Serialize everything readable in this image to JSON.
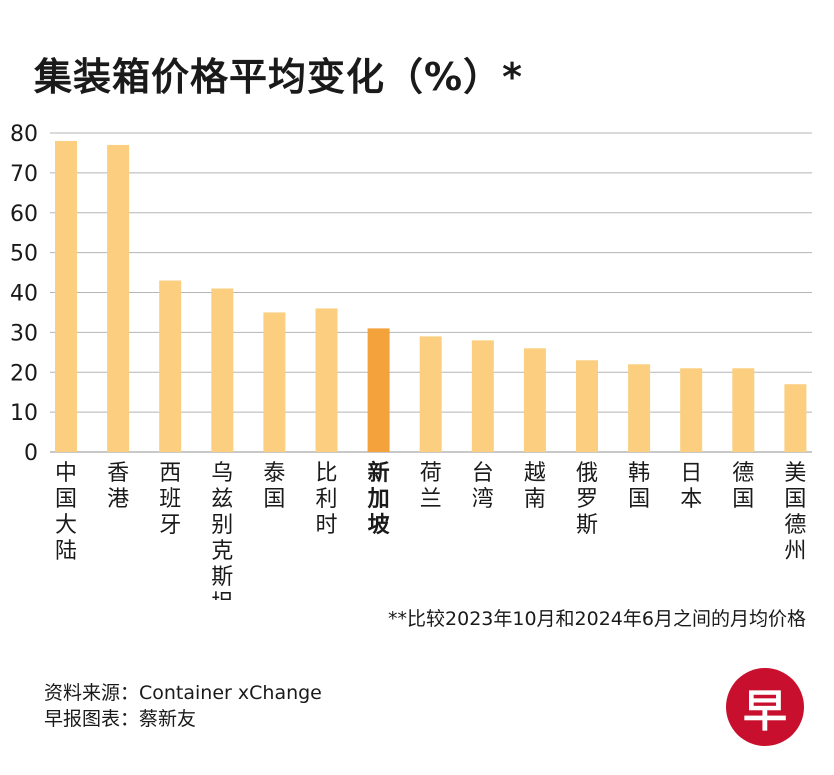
{
  "chart_data": {
    "type": "bar",
    "title": "集装箱价格平均变化（%）*",
    "categories": [
      "中国大陆",
      "香港",
      "西班牙",
      "乌兹别克斯坦",
      "泰国",
      "比利时",
      "新加坡",
      "荷兰",
      "台湾",
      "越南",
      "俄罗斯",
      "韩国",
      "日本",
      "德国",
      "美国德州"
    ],
    "values": [
      78,
      77,
      43,
      41,
      35,
      36,
      31,
      29,
      28,
      26,
      23,
      22,
      21,
      21,
      17
    ],
    "highlight": "新加坡",
    "ylim": [
      0,
      80
    ],
    "yticks": [
      "0",
      "10",
      "20",
      "30",
      "40",
      "50",
      "60",
      "70",
      "80"
    ],
    "xlabel": "",
    "ylabel": "",
    "grid": true,
    "colors": {
      "bar": "#fbcf7f",
      "highlight": "#f4a23c",
      "grid": "#b5b5b5"
    }
  },
  "footnote": "**比较2023年10月和2024年6月之间的月均价格",
  "source": {
    "data": "资料来源：Container xChange",
    "chart_by": "早报图表：蔡新友"
  },
  "logo": {
    "text": "早",
    "color": "#c8102e"
  }
}
